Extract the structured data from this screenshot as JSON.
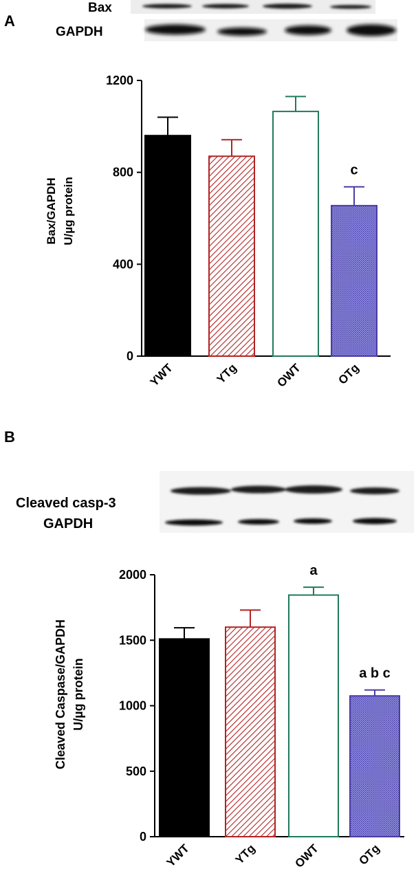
{
  "panels": [
    {
      "letter": "A",
      "blot_labels": [
        "Bax",
        "GAPDH"
      ]
    },
    {
      "letter": "B",
      "blot_labels": [
        "Cleaved casp-3",
        "GAPDH"
      ]
    }
  ],
  "colors": {
    "YWT": "#000000",
    "YTg": "#b22222",
    "OWT": "#1f7a5a",
    "OTg": "#4b3aa6"
  },
  "chart_data": [
    {
      "type": "bar",
      "title": "",
      "xlabel": "",
      "ylabel": [
        "Bax/GAPDH",
        "U/µg protein"
      ],
      "categories": [
        "YWT",
        "YTg",
        "OWT",
        "OTg"
      ],
      "values": [
        960,
        870,
        1065,
        655
      ],
      "errors": [
        80,
        72,
        65,
        82
      ],
      "annotations": [
        "",
        "",
        "",
        "c"
      ],
      "ylim": [
        0,
        1200
      ],
      "yticks": [
        0,
        400,
        800,
        1200
      ],
      "fill_patterns": [
        "solid",
        "diagonal-hatch",
        "open",
        "crosshatch"
      ]
    },
    {
      "type": "bar",
      "title": "",
      "xlabel": "",
      "ylabel": [
        "Cleaved Caspase/GAPDH",
        "U/µg protein"
      ],
      "categories": [
        "YWT",
        "YTg",
        "OWT",
        "OTg"
      ],
      "values": [
        1510,
        1600,
        1845,
        1075
      ],
      "errors": [
        85,
        130,
        60,
        45
      ],
      "annotations": [
        "",
        "",
        "a",
        "a b c"
      ],
      "ylim": [
        0,
        2000
      ],
      "yticks": [
        0,
        500,
        1000,
        1500,
        2000
      ],
      "fill_patterns": [
        "solid",
        "diagonal-hatch",
        "open",
        "crosshatch"
      ]
    }
  ]
}
